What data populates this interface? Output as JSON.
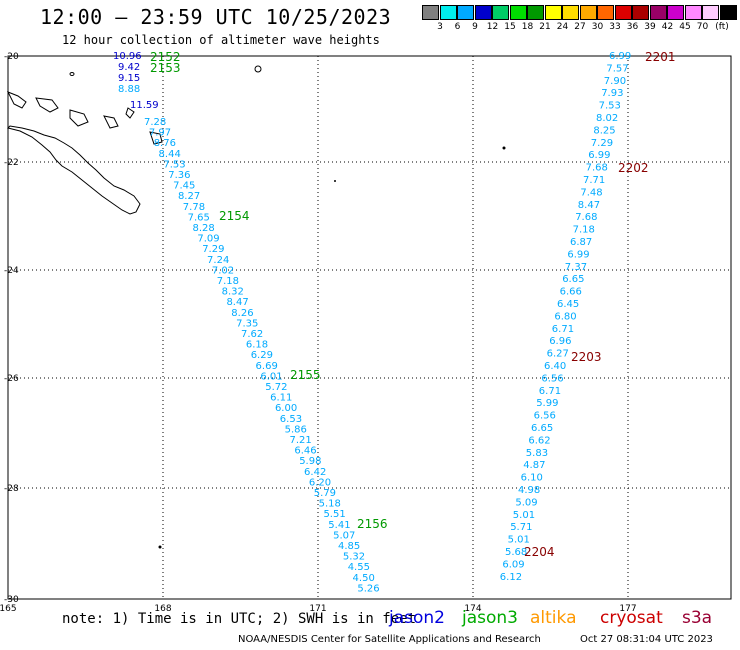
{
  "title": "12:00 – 23:59 UTC 10/25/2023",
  "subtitle": "12 hour collection of altimeter wave heights",
  "note": "note: 1) Time is in UTC; 2) SWH is in feet",
  "credit": "NOAA/NESDIS Center for Satellite Applications and Research",
  "timestamp": "Oct 27 08:31:04 UTC 2023",
  "satellites": [
    {
      "name": "jason2",
      "color": "#0000dd"
    },
    {
      "name": "jason3",
      "color": "#00aa00"
    },
    {
      "name": "altika",
      "color": "#ff9900"
    },
    {
      "name": "cryosat",
      "color": "#cc0000"
    },
    {
      "name": "s3a",
      "color": "#990033"
    }
  ],
  "legend": {
    "unit": "(ft)",
    "colors": [
      "#808080",
      "#00eeee",
      "#00aaff",
      "#0000cc",
      "#00cc66",
      "#00dd00",
      "#009900",
      "#ffff00",
      "#ffdd00",
      "#ffaa00",
      "#ff6600",
      "#dd0000",
      "#aa0000",
      "#990066",
      "#cc00cc",
      "#ff88ff",
      "#ffccff",
      "#000000"
    ],
    "labels": [
      "3",
      "6",
      "9",
      "12",
      "15",
      "18",
      "21",
      "24",
      "27",
      "30",
      "33",
      "36",
      "39",
      "42",
      "45",
      "70"
    ]
  },
  "axes": {
    "lon_ticks": [
      "165",
      "168",
      "171",
      "174",
      "177"
    ],
    "lat_ticks": [
      "-20",
      "-22",
      "-24",
      "-26",
      "-28",
      "-30"
    ]
  },
  "track_west": {
    "values": [
      "10.96",
      "9.42",
      "9.15",
      "8.88",
      "11.59",
      "7.28",
      "7.97",
      "8.76",
      "8.44",
      "7.53",
      "7.36",
      "7.45",
      "8.27",
      "7.78",
      "7.65",
      "8.28",
      "7.09",
      "7.29",
      "7.24",
      "7.02",
      "7.18",
      "8.32",
      "8.47",
      "8.26",
      "7.35",
      "7.62",
      "6.18",
      "6.29",
      "6.69",
      "6.01",
      "5.72",
      "6.11",
      "6.00",
      "6.53",
      "5.86",
      "7.21",
      "6.46",
      "5.98",
      "6.42",
      "6.20",
      "5.79",
      "5.18",
      "5.51",
      "5.41",
      "5.07",
      "4.85",
      "5.32",
      "4.55",
      "4.50",
      "5.26"
    ],
    "colors": [
      "#0000cc",
      "#0000cc",
      "#0000cc",
      "#00aaff",
      "#0000cc",
      "#00aaff",
      "#00aaff",
      "#00aaff",
      "#00aaff",
      "#00aaff",
      "#00aaff",
      "#00aaff",
      "#00aaff",
      "#00aaff",
      "#00aaff",
      "#00aaff",
      "#00aaff",
      "#00aaff",
      "#00aaff",
      "#00aaff",
      "#00aaff",
      "#00aaff",
      "#00aaff",
      "#00aaff",
      "#00aaff",
      "#00aaff",
      "#00aaff",
      "#00aaff",
      "#00aaff",
      "#00aaff",
      "#00aaff",
      "#00aaff",
      "#00aaff",
      "#00aaff",
      "#00aaff",
      "#00aaff",
      "#00aaff",
      "#00aaff",
      "#00aaff",
      "#00aaff",
      "#00aaff",
      "#00aaff",
      "#00aaff",
      "#00aaff",
      "#00aaff",
      "#00aaff",
      "#00aaff",
      "#00aaff",
      "#00aaff",
      "#00aaff"
    ],
    "times": [
      {
        "label": "2152",
        "color": "#009900"
      },
      {
        "label": "2153",
        "color": "#009900"
      },
      {
        "label": "2154",
        "color": "#009900"
      },
      {
        "label": "2155",
        "color": "#009900"
      },
      {
        "label": "2156",
        "color": "#009900"
      }
    ]
  },
  "track_east": {
    "values": [
      "6.99",
      "7.57",
      "7.90",
      "7.93",
      "7.53",
      "8.02",
      "8.25",
      "7.29",
      "6.99",
      "7.68",
      "7.71",
      "7.48",
      "8.47",
      "7.68",
      "7.18",
      "6.87",
      "6.99",
      "7.37",
      "6.65",
      "6.66",
      "6.45",
      "6.80",
      "6.71",
      "6.96",
      "6.27",
      "6.40",
      "6.56",
      "6.71",
      "5.99",
      "6.56",
      "6.65",
      "6.62",
      "5.83",
      "4.87",
      "6.10",
      "4.98",
      "5.09",
      "5.01",
      "5.71",
      "5.01",
      "5.68",
      "6.09",
      "6.12"
    ],
    "times": [
      {
        "label": "2201",
        "color": "#880000"
      },
      {
        "label": "2202",
        "color": "#880000"
      },
      {
        "label": "2203",
        "color": "#880000"
      },
      {
        "label": "2204",
        "color": "#880000"
      }
    ]
  }
}
